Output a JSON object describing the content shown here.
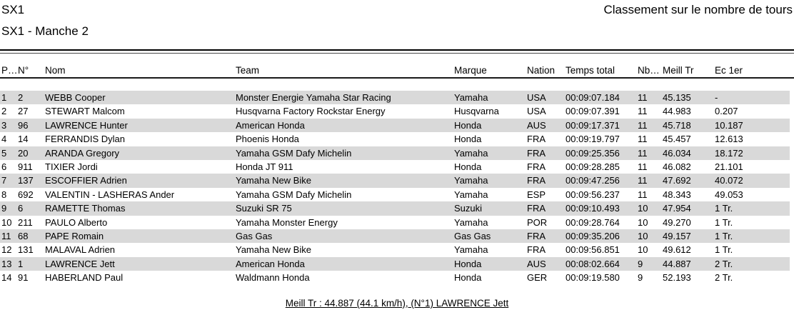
{
  "header": {
    "title_left": "SX1",
    "title_right": "Classement sur le nombre de tours",
    "subtitle": "SX1 - Manche 2"
  },
  "table": {
    "columns": [
      "P…",
      "N°",
      "Nom",
      "Team",
      "Marque",
      "Nation",
      "Temps total",
      "Nb…",
      "Meill Tr",
      "Ec 1er"
    ],
    "rows": [
      [
        "1",
        "2",
        "WEBB Cooper",
        "Monster Energie Yamaha Star Racing",
        "Yamaha",
        "USA",
        "00:09:07.184",
        "11",
        "45.135",
        "-"
      ],
      [
        "2",
        "27",
        "STEWART Malcom",
        "Husqvarna Factory Rockstar Energy",
        "Husqvarna",
        "USA",
        "00:09:07.391",
        "11",
        "44.983",
        "0.207"
      ],
      [
        "3",
        "96",
        "LAWRENCE Hunter",
        "American Honda",
        "Honda",
        "AUS",
        "00:09:17.371",
        "11",
        "45.718",
        "10.187"
      ],
      [
        "4",
        "14",
        "FERRANDIS Dylan",
        "Phoenis Honda",
        "Honda",
        "FRA",
        "00:09:19.797",
        "11",
        "45.457",
        "12.613"
      ],
      [
        "5",
        "20",
        "ARANDA Gregory",
        "Yamaha GSM Dafy Michelin",
        "Yamaha",
        "FRA",
        "00:09:25.356",
        "11",
        "46.034",
        "18.172"
      ],
      [
        "6",
        "911",
        "TIXIER Jordi",
        "Honda JT 911",
        "Honda",
        "FRA",
        "00:09:28.285",
        "11",
        "46.082",
        "21.101"
      ],
      [
        "7",
        "137",
        "ESCOFFIER Adrien",
        "Yamaha New Bike",
        "Yamaha",
        "FRA",
        "00:09:47.256",
        "11",
        "47.692",
        "40.072"
      ],
      [
        "8",
        "692",
        "VALENTIN - LASHERAS Ander",
        "Yamaha GSM Dafy Michelin",
        "Yamaha",
        "ESP",
        "00:09:56.237",
        "11",
        "48.343",
        "49.053"
      ],
      [
        "9",
        "6",
        "RAMETTE Thomas",
        "Suzuki SR 75",
        "Suzuki",
        "FRA",
        "00:09:10.493",
        "10",
        "47.954",
        "1 Tr."
      ],
      [
        "10",
        "211",
        "PAULO Alberto",
        "Yamaha Monster Energy",
        "Yamaha",
        "POR",
        "00:09:28.764",
        "10",
        "49.270",
        "1 Tr."
      ],
      [
        "11",
        "68",
        "PAPE Romain",
        "Gas Gas",
        "Gas Gas",
        "FRA",
        "00:09:35.206",
        "10",
        "49.157",
        "1 Tr."
      ],
      [
        "12",
        "131",
        "MALAVAL Adrien",
        "Yamaha New Bike",
        "Yamaha",
        "FRA",
        "00:09:56.851",
        "10",
        "49.612",
        "1 Tr."
      ],
      [
        "13",
        "1",
        "LAWRENCE Jett",
        "American Honda",
        "Honda",
        "AUS",
        "00:08:02.664",
        "9",
        "44.887",
        "2 Tr."
      ],
      [
        "14",
        "91",
        "HABERLAND Paul",
        "Waldmann Honda",
        "Honda",
        "GER",
        "00:09:19.580",
        "9",
        "52.193",
        "2 Tr."
      ]
    ]
  },
  "footer": {
    "best_lap_note": "Meill Tr : 44.887 (44.1 km/h), (N°1) LAWRENCE Jett"
  },
  "colors": {
    "stripe": "#d9d9d9",
    "text": "#000000",
    "rule": "#000000"
  }
}
